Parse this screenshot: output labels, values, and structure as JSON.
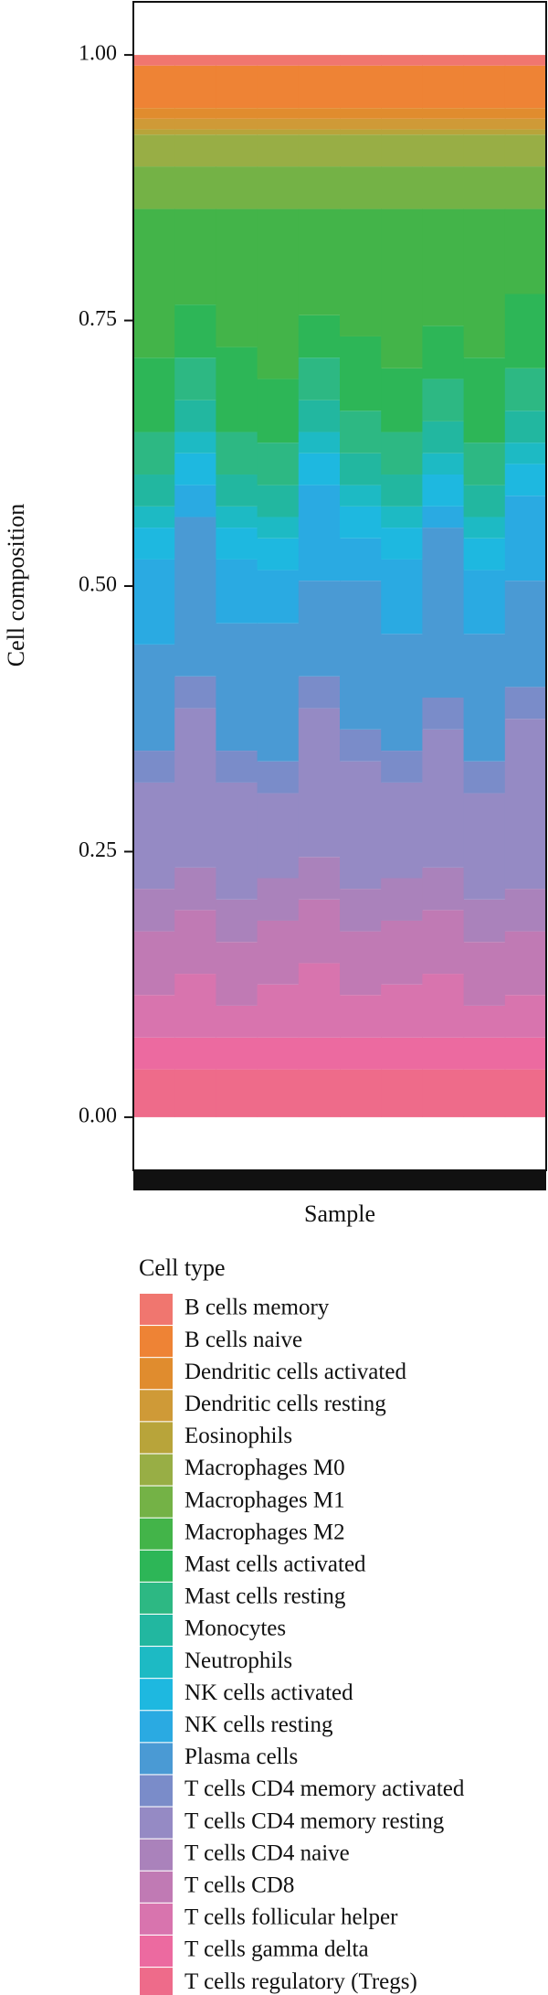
{
  "chart_data": {
    "type": "stacked_bar",
    "y_label": "Cell composition",
    "x_label": "Sample",
    "legend_title": "Cell type",
    "categories": [
      null,
      null,
      null,
      null,
      null,
      null,
      null,
      null,
      null,
      null
    ],
    "ylim": [
      -0.05,
      1.05
    ],
    "yticks": [
      {
        "value": 0,
        "label": "0.00"
      },
      {
        "value": 0.25,
        "label": "0.25"
      },
      {
        "value": 0.5,
        "label": "0.50"
      },
      {
        "value": 0.75,
        "label": "0.75"
      },
      {
        "value": 1,
        "label": "1.00"
      }
    ],
    "series": [
      {
        "name": "B cells memory",
        "color": "#F0766F",
        "values": [
          0.01,
          0.01,
          0.01,
          0.01,
          0.01,
          0.01,
          0.01,
          0.01,
          0.01,
          0.01
        ]
      },
      {
        "name": "B cells naive",
        "color": "#EE8335",
        "values": [
          0.04,
          0.04,
          0.04,
          0.04,
          0.04,
          0.04,
          0.04,
          0.04,
          0.04,
          0.04
        ]
      },
      {
        "name": "Dendritic cells activated",
        "color": "#E08C2E",
        "values": [
          0.01,
          0.01,
          0.01,
          0.01,
          0.01,
          0.01,
          0.01,
          0.01,
          0.01,
          0.01
        ]
      },
      {
        "name": "Dendritic cells resting",
        "color": "#CF9A37",
        "values": [
          0.01,
          0.01,
          0.01,
          0.01,
          0.01,
          0.01,
          0.01,
          0.01,
          0.01,
          0.01
        ]
      },
      {
        "name": "Eosinophils",
        "color": "#B8A43A",
        "values": [
          0.005,
          0.005,
          0.005,
          0.005,
          0.005,
          0.005,
          0.005,
          0.005,
          0.005,
          0.005
        ]
      },
      {
        "name": "Macrophages M0",
        "color": "#98AE45",
        "values": [
          0.03,
          0.03,
          0.03,
          0.03,
          0.03,
          0.03,
          0.03,
          0.03,
          0.03,
          0.03
        ]
      },
      {
        "name": "Macrophages M1",
        "color": "#74B246",
        "values": [
          0.04,
          0.04,
          0.04,
          0.04,
          0.04,
          0.04,
          0.04,
          0.04,
          0.04,
          0.04
        ]
      },
      {
        "name": "Macrophages M2",
        "color": "#43B449",
        "values": [
          0.14,
          0.09,
          0.13,
          0.16,
          0.1,
          0.12,
          0.15,
          0.11,
          0.14,
          0.08
        ]
      },
      {
        "name": "Mast cells activated",
        "color": "#2DB657",
        "values": [
          0.07,
          0.05,
          0.08,
          0.06,
          0.04,
          0.07,
          0.06,
          0.05,
          0.08,
          0.07
        ]
      },
      {
        "name": "Mast cells resting",
        "color": "#2DB883",
        "values": [
          0.04,
          0.04,
          0.04,
          0.04,
          0.04,
          0.04,
          0.04,
          0.04,
          0.04,
          0.04
        ]
      },
      {
        "name": "Monocytes",
        "color": "#22B7A0",
        "values": [
          0.03,
          0.03,
          0.03,
          0.03,
          0.03,
          0.03,
          0.03,
          0.03,
          0.03,
          0.03
        ]
      },
      {
        "name": "Neutrophils",
        "color": "#1DBAC4",
        "values": [
          0.02,
          0.02,
          0.02,
          0.02,
          0.02,
          0.02,
          0.02,
          0.02,
          0.02,
          0.02
        ]
      },
      {
        "name": "NK cells activated",
        "color": "#1EB8E0",
        "values": [
          0.03,
          0.03,
          0.03,
          0.03,
          0.03,
          0.03,
          0.03,
          0.03,
          0.03,
          0.03
        ]
      },
      {
        "name": "NK cells resting",
        "color": "#2AAAE2",
        "values": [
          0.08,
          0.03,
          0.06,
          0.05,
          0.09,
          0.04,
          0.07,
          0.02,
          0.06,
          0.08
        ]
      },
      {
        "name": "Plasma cells",
        "color": "#4A9AD4",
        "values": [
          0.1,
          0.15,
          0.12,
          0.13,
          0.09,
          0.14,
          0.11,
          0.16,
          0.12,
          0.1
        ]
      },
      {
        "name": "T cells CD4 memory activated",
        "color": "#7A8CC9",
        "values": [
          0.03,
          0.03,
          0.03,
          0.03,
          0.03,
          0.03,
          0.03,
          0.03,
          0.03,
          0.03
        ]
      },
      {
        "name": "T cells CD4 memory resting",
        "color": "#958AC4",
        "values": [
          0.1,
          0.15,
          0.11,
          0.08,
          0.14,
          0.12,
          0.09,
          0.13,
          0.1,
          0.16
        ]
      },
      {
        "name": "T cells CD4 naive",
        "color": "#AA82BB",
        "values": [
          0.04,
          0.04,
          0.04,
          0.04,
          0.04,
          0.04,
          0.04,
          0.04,
          0.04,
          0.04
        ]
      },
      {
        "name": "T cells CD8",
        "color": "#C07AB4",
        "values": [
          0.06,
          0.06,
          0.06,
          0.06,
          0.06,
          0.06,
          0.06,
          0.06,
          0.06,
          0.06
        ]
      },
      {
        "name": "T cells follicular helper",
        "color": "#D874AE",
        "values": [
          0.04,
          0.06,
          0.03,
          0.05,
          0.07,
          0.04,
          0.05,
          0.06,
          0.03,
          0.04
        ]
      },
      {
        "name": "T cells gamma delta",
        "color": "#EC6AA0",
        "values": [
          0.03,
          0.03,
          0.03,
          0.03,
          0.03,
          0.03,
          0.03,
          0.03,
          0.03,
          0.03
        ]
      },
      {
        "name": "T cells regulatory (Tregs)",
        "color": "#EE6B8A",
        "values": [
          0.045,
          0.045,
          0.045,
          0.045,
          0.045,
          0.045,
          0.045,
          0.045,
          0.045,
          0.045
        ]
      }
    ]
  }
}
